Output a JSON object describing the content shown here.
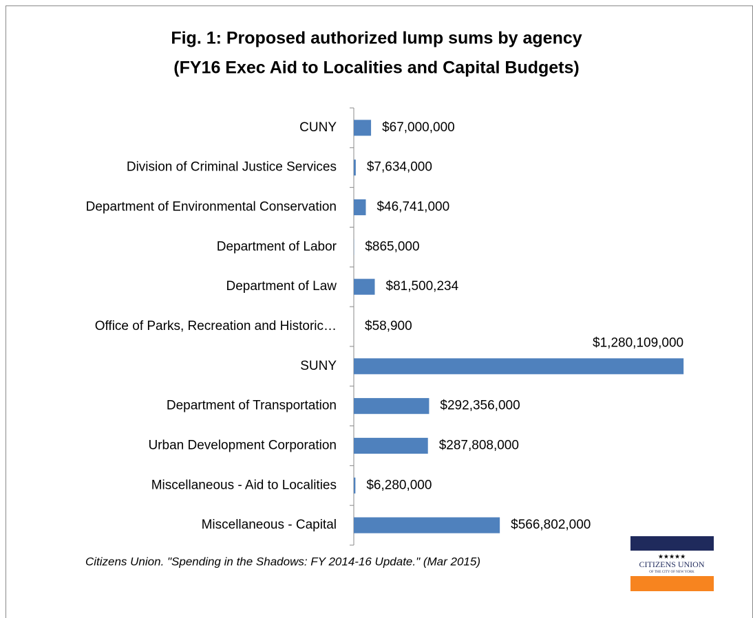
{
  "chart_data": {
    "type": "bar",
    "orientation": "horizontal",
    "title": "Fig. 1: Proposed authorized lump sums by agency",
    "subtitle": "(FY16 Exec Aid to Localities and Capital Budgets)",
    "categories": [
      "CUNY",
      "Division of Criminal Justice Services",
      "Department of Environmental Conservation",
      "Department of Labor",
      "Department of Law",
      "Office of Parks, Recreation and Historic…",
      "SUNY",
      "Department of Transportation",
      "Urban Development Corporation",
      "Miscellaneous - Aid to Localities",
      "Miscellaneous - Capital"
    ],
    "values": [
      67000000,
      7634000,
      46741000,
      865000,
      81500234,
      58900,
      1280109000,
      292356000,
      287808000,
      6280000,
      566802000
    ],
    "value_labels": [
      "$67,000,000",
      "$7,634,000",
      "$46,741,000",
      "$865,000",
      "$81,500,234",
      "$58,900",
      "$1,280,109,000",
      "$292,356,000",
      "$287,808,000",
      "$6,280,000",
      "$566,802,000"
    ],
    "color": "#4f81bd",
    "xlim": [
      0,
      1400000000
    ],
    "source": "Citizens Union. \"Spending in the Shadows: FY 2014-16 Update.\" (Mar 2015)",
    "logo": {
      "text": "CITIZENS UNION",
      "subtext": "OF THE CITY OF NEW YORK"
    }
  }
}
